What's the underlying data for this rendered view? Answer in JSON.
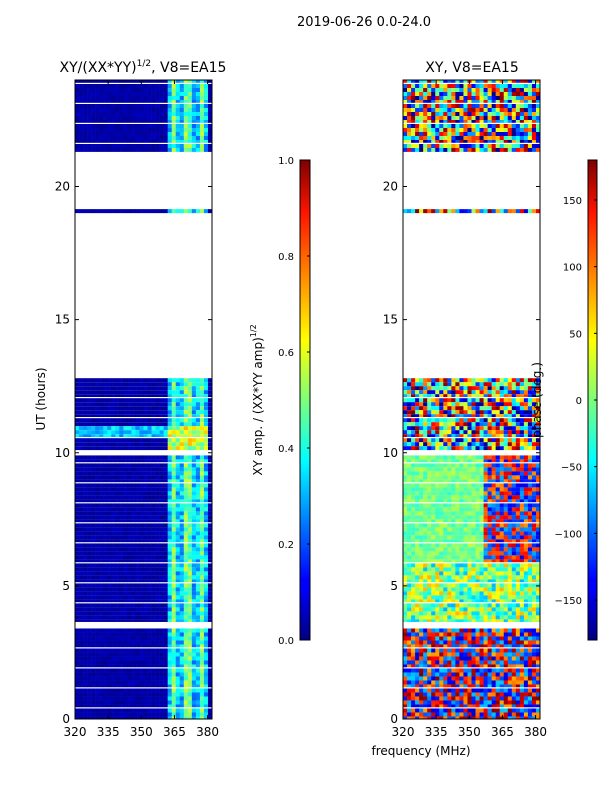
{
  "figure_title": "2019-06-26 0.0-24.0",
  "shared_xlabel": "frequency (MHz)",
  "chart_data": [
    {
      "type": "heatmap",
      "title": "XY/(XX*YY)",
      "title_exp": "1/2",
      "title_suffix": ", V8=EA15",
      "xlabel": "",
      "ylabel": "UT (hours)",
      "xlim": [
        320,
        382
      ],
      "ylim": [
        0,
        24
      ],
      "xticks": [
        320,
        335,
        350,
        365,
        380
      ],
      "yticks": [
        0,
        5,
        10,
        15,
        20
      ],
      "valid_time_bands_hours": [
        [
          0.0,
          3.4
        ],
        [
          3.6,
          9.9
        ],
        [
          10.1,
          12.8
        ],
        [
          19.0,
          19.15
        ],
        [
          21.3,
          24.0
        ]
      ],
      "bright_channel_range_mhz": [
        362,
        381
      ],
      "colorbar": {
        "label": "XY amp. / (XX*YY amp)",
        "label_exp": "1/2",
        "range": [
          0.0,
          1.0
        ],
        "ticks": [
          "0.0",
          "0.2",
          "0.4",
          "0.6",
          "0.8",
          "1.0"
        ]
      }
    },
    {
      "type": "heatmap",
      "title": "XY, V8=EA15",
      "xlabel": "frequency (MHz)",
      "ylabel": "",
      "xlim": [
        320,
        382
      ],
      "ylim": [
        0,
        24
      ],
      "xticks": [
        320,
        335,
        350,
        365,
        380
      ],
      "yticks": [
        0,
        5,
        10,
        15,
        20
      ],
      "valid_time_bands_hours": [
        [
          0.0,
          3.4
        ],
        [
          3.6,
          9.9
        ],
        [
          10.1,
          12.8
        ],
        [
          19.0,
          19.15
        ],
        [
          21.3,
          24.0
        ]
      ],
      "colorbar": {
        "label": "phase (deg.)",
        "range": [
          -180,
          180
        ],
        "ticks": [
          "-150",
          "-100",
          "-50",
          "0",
          "50",
          "100",
          "150"
        ]
      }
    }
  ]
}
